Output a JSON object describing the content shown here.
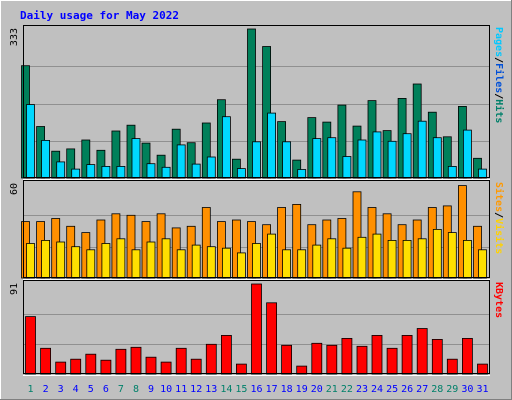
{
  "chart_data": {
    "type": "bar",
    "title": "Daily usage for May 2022",
    "categories": [
      "1",
      "2",
      "3",
      "4",
      "5",
      "6",
      "7",
      "8",
      "9",
      "10",
      "11",
      "12",
      "13",
      "14",
      "15",
      "16",
      "17",
      "18",
      "19",
      "20",
      "21",
      "22",
      "23",
      "24",
      "25",
      "26",
      "27",
      "28",
      "29",
      "30",
      "31"
    ],
    "weekend_days": [
      "1",
      "7",
      "8",
      "14",
      "15",
      "21",
      "22",
      "28",
      "29"
    ],
    "panels": [
      {
        "id": "hits",
        "ylabel_parts": [
          {
            "text": "Pages",
            "color": "#00c8ff"
          },
          {
            "text": "/",
            "color": "#000000"
          },
          {
            "text": "Files",
            "color": "#0050d8"
          },
          {
            "text": "/",
            "color": "#000000"
          },
          {
            "text": "Hits",
            "color": "#00806a"
          }
        ],
        "ymax_label": "333",
        "ymax": 333,
        "series": [
          {
            "name": "Hits",
            "color": "#00805a",
            "values": [
              251,
              115,
              60,
              65,
              85,
              62,
              105,
              118,
              78,
              51,
              109,
              79,
              123,
              175,
              42,
              333,
              294,
              126,
              40,
              135,
              125,
              163,
              116,
              173,
              106,
              178,
              210,
              147,
              92,
              160,
              44
            ]
          },
          {
            "name": "Files",
            "color": "#00d8ff",
            "values": [
              164,
              84,
              36,
              20,
              30,
              26,
              26,
              88,
              32,
              24,
              74,
              31,
              47,
              137,
              21,
              81,
              145,
              81,
              19,
              88,
              90,
              48,
              85,
              103,
              82,
              99,
              127,
              90,
              26,
              107,
              20
            ]
          }
        ]
      },
      {
        "id": "visits",
        "ylabel_parts": [
          {
            "text": "Sites",
            "color": "#ff9900"
          },
          {
            "text": "/",
            "color": "#000000"
          },
          {
            "text": "Visits",
            "color": "#ffd200"
          }
        ],
        "ymax_label": "60",
        "ymax": 60,
        "series": [
          {
            "name": "Visits",
            "color": "#ff9000",
            "values": [
              36,
              36,
              38,
              33,
              29,
              37,
              41,
              40,
              36,
              41,
              32,
              33,
              45,
              36,
              37,
              36,
              34,
              45,
              47,
              34,
              37,
              38,
              55,
              45,
              41,
              34,
              37,
              45,
              46,
              59,
              33
            ]
          },
          {
            "name": "Sites",
            "color": "#ffe000",
            "values": [
              22,
              24,
              23,
              20,
              18,
              22,
              25,
              18,
              23,
              25,
              18,
              21,
              20,
              19,
              16,
              22,
              28,
              18,
              18,
              21,
              25,
              19,
              26,
              28,
              24,
              24,
              25,
              31,
              29,
              24,
              18
            ]
          }
        ]
      },
      {
        "id": "kbytes",
        "ylabel_parts": [
          {
            "text": "KBytes",
            "color": "#ff0000"
          }
        ],
        "ymax_label": "91",
        "ymax": 91,
        "series": [
          {
            "name": "KBytes",
            "color": "#ff0000",
            "values": [
              58,
              26,
              12,
              15,
              20,
              14,
              25,
              27,
              17,
              12,
              26,
              15,
              30,
              39,
              10,
              91,
              72,
              29,
              8,
              31,
              29,
              36,
              28,
              39,
              26,
              39,
              46,
              35,
              15,
              36,
              10
            ]
          }
        ]
      }
    ],
    "colors": {
      "background": "#c0c0c0",
      "plot": "#c0c0c0",
      "title": "#0000ff",
      "gridline": "#909090",
      "day_label": "#0000ff",
      "weekend_label": "#00806a",
      "frame_light": "#ffffff",
      "frame_dark": "#808080"
    }
  }
}
